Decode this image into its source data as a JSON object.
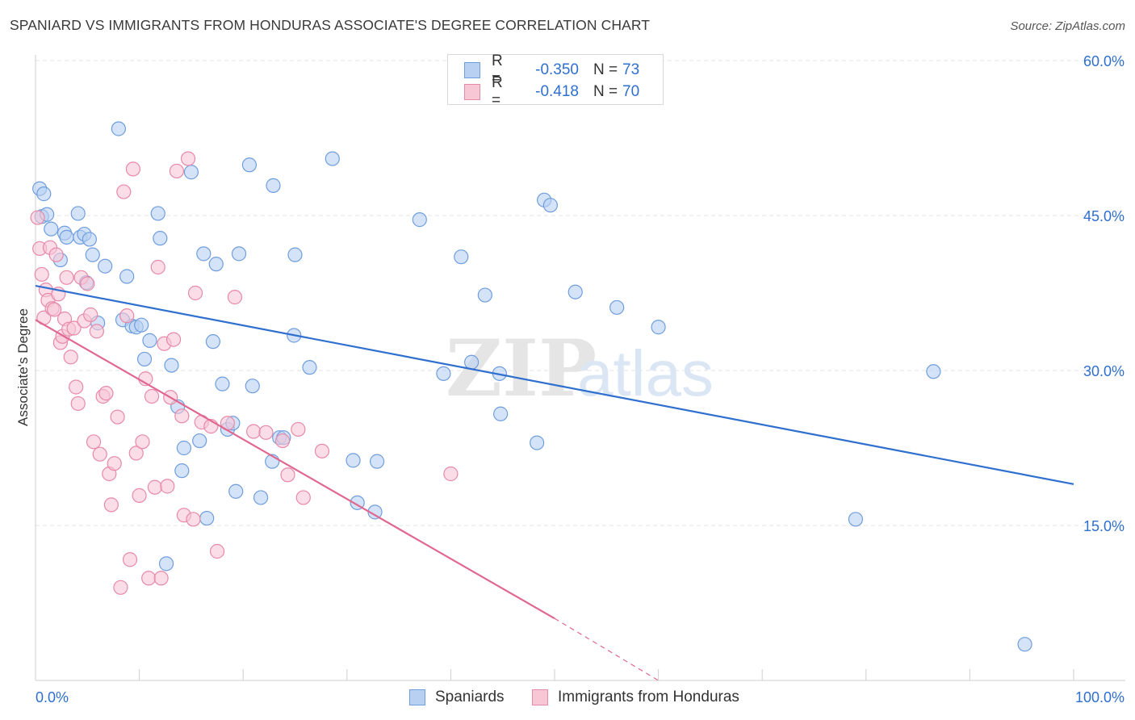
{
  "title": "SPANIARD VS IMMIGRANTS FROM HONDURAS ASSOCIATE'S DEGREE CORRELATION CHART",
  "source": "Source: ZipAtlas.com",
  "watermark": {
    "zip": "ZIP",
    "atlas": "atlas"
  },
  "legend_top": {
    "r_label": "R =",
    "n_label": "N =",
    "rows": [
      {
        "r": "-0.350",
        "n": "73"
      },
      {
        "r": "-0.418",
        "n": "70"
      }
    ]
  },
  "colors": {
    "blue_fill": "#b8d0f2",
    "blue_stroke": "#6f9ede",
    "blue_line": "#2e6fd0",
    "pink_fill": "#f7c7d6",
    "pink_stroke": "#e889a8",
    "pink_line": "#e0678f",
    "axis_text": "#2e6fd0",
    "grid": "#e3e3e3"
  },
  "chart_data": {
    "type": "scatter",
    "title": "SPANIARD VS IMMIGRANTS FROM HONDURAS ASSOCIATE'S DEGREE CORRELATION CHART",
    "xlabel": "",
    "ylabel": "Associate's Degree",
    "xlim": [
      0,
      100
    ],
    "ylim": [
      0,
      60
    ],
    "x_ticks": [
      0,
      100
    ],
    "x_tick_labels": [
      "0.0%",
      "100.0%"
    ],
    "y_ticks": [
      15,
      30,
      45,
      60
    ],
    "y_tick_labels": [
      "15.0%",
      "30.0%",
      "45.0%",
      "60.0%"
    ],
    "grid": true,
    "legend_position": "bottom",
    "series": [
      {
        "name": "Spaniards",
        "points": [
          [
            0.4,
            47.6
          ],
          [
            0.6,
            44.9
          ],
          [
            0.8,
            47.1
          ],
          [
            1.1,
            45.1
          ],
          [
            1.5,
            43.7
          ],
          [
            2.4,
            40.7
          ],
          [
            2.8,
            43.3
          ],
          [
            3.0,
            42.9
          ],
          [
            4.1,
            45.2
          ],
          [
            4.3,
            42.9
          ],
          [
            4.7,
            43.2
          ],
          [
            4.9,
            38.5
          ],
          [
            5.2,
            42.7
          ],
          [
            5.5,
            41.2
          ],
          [
            6.0,
            34.6
          ],
          [
            6.7,
            40.1
          ],
          [
            8.0,
            53.4
          ],
          [
            8.4,
            34.9
          ],
          [
            8.8,
            39.1
          ],
          [
            9.3,
            34.3
          ],
          [
            9.7,
            34.2
          ],
          [
            10.2,
            34.4
          ],
          [
            10.5,
            31.1
          ],
          [
            11.0,
            32.9
          ],
          [
            11.8,
            45.2
          ],
          [
            12.0,
            42.8
          ],
          [
            12.6,
            11.3
          ],
          [
            13.1,
            30.5
          ],
          [
            13.7,
            26.5
          ],
          [
            14.1,
            20.3
          ],
          [
            14.3,
            22.5
          ],
          [
            15.0,
            49.2
          ],
          [
            15.8,
            23.2
          ],
          [
            16.2,
            41.3
          ],
          [
            16.5,
            15.7
          ],
          [
            17.1,
            32.8
          ],
          [
            17.4,
            40.3
          ],
          [
            18.0,
            28.7
          ],
          [
            18.5,
            24.3
          ],
          [
            19.0,
            24.9
          ],
          [
            19.3,
            18.3
          ],
          [
            19.6,
            41.3
          ],
          [
            20.6,
            49.9
          ],
          [
            20.9,
            28.5
          ],
          [
            21.7,
            17.7
          ],
          [
            22.8,
            21.2
          ],
          [
            22.9,
            47.9
          ],
          [
            23.5,
            23.5
          ],
          [
            23.9,
            23.5
          ],
          [
            25.0,
            41.2
          ],
          [
            24.9,
            33.4
          ],
          [
            26.4,
            30.3
          ],
          [
            28.6,
            50.5
          ],
          [
            30.6,
            21.3
          ],
          [
            31.0,
            17.2
          ],
          [
            32.7,
            16.3
          ],
          [
            32.9,
            21.2
          ],
          [
            37.0,
            44.6
          ],
          [
            39.3,
            29.7
          ],
          [
            41.0,
            41.0
          ],
          [
            42.0,
            30.8
          ],
          [
            43.3,
            37.3
          ],
          [
            44.7,
            29.7
          ],
          [
            44.8,
            25.8
          ],
          [
            48.3,
            23.0
          ],
          [
            49.0,
            46.5
          ],
          [
            49.6,
            46.0
          ],
          [
            52.0,
            37.6
          ],
          [
            56.0,
            36.1
          ],
          [
            60.0,
            34.2
          ],
          [
            79.0,
            15.6
          ],
          [
            86.5,
            29.9
          ],
          [
            95.3,
            3.5
          ]
        ]
      },
      {
        "name": "Immigrants from Honduras",
        "points": [
          [
            0.2,
            44.8
          ],
          [
            0.4,
            41.8
          ],
          [
            0.6,
            39.3
          ],
          [
            0.8,
            35.1
          ],
          [
            1.0,
            37.8
          ],
          [
            1.2,
            36.8
          ],
          [
            1.4,
            41.9
          ],
          [
            1.6,
            36.0
          ],
          [
            1.8,
            35.9
          ],
          [
            2.0,
            41.2
          ],
          [
            2.2,
            37.4
          ],
          [
            2.4,
            32.7
          ],
          [
            2.6,
            33.3
          ],
          [
            2.8,
            35.0
          ],
          [
            3.0,
            39.0
          ],
          [
            3.2,
            34.0
          ],
          [
            3.4,
            31.3
          ],
          [
            3.7,
            34.1
          ],
          [
            3.9,
            28.4
          ],
          [
            4.1,
            26.8
          ],
          [
            4.4,
            39.0
          ],
          [
            4.7,
            34.8
          ],
          [
            5.0,
            38.4
          ],
          [
            5.3,
            35.4
          ],
          [
            5.6,
            23.1
          ],
          [
            5.9,
            33.8
          ],
          [
            6.2,
            21.9
          ],
          [
            6.5,
            27.5
          ],
          [
            6.8,
            27.8
          ],
          [
            7.1,
            20.0
          ],
          [
            7.3,
            17.0
          ],
          [
            7.6,
            21.0
          ],
          [
            7.9,
            25.5
          ],
          [
            8.2,
            9.0
          ],
          [
            8.5,
            47.3
          ],
          [
            8.8,
            35.3
          ],
          [
            9.1,
            11.7
          ],
          [
            9.4,
            49.5
          ],
          [
            9.7,
            22.0
          ],
          [
            10.0,
            17.9
          ],
          [
            10.3,
            23.1
          ],
          [
            10.6,
            29.2
          ],
          [
            10.9,
            9.9
          ],
          [
            11.2,
            27.5
          ],
          [
            11.5,
            18.7
          ],
          [
            11.8,
            40.0
          ],
          [
            12.1,
            9.9
          ],
          [
            12.4,
            32.6
          ],
          [
            12.7,
            18.8
          ],
          [
            13.0,
            27.4
          ],
          [
            13.3,
            33.0
          ],
          [
            13.6,
            49.3
          ],
          [
            14.1,
            25.6
          ],
          [
            14.3,
            16.0
          ],
          [
            14.7,
            50.5
          ],
          [
            15.2,
            15.6
          ],
          [
            15.4,
            37.5
          ],
          [
            16.0,
            25.0
          ],
          [
            16.9,
            24.6
          ],
          [
            17.5,
            12.5
          ],
          [
            18.5,
            24.9
          ],
          [
            19.2,
            37.1
          ],
          [
            21.0,
            24.1
          ],
          [
            22.2,
            24.0
          ],
          [
            23.8,
            23.2
          ],
          [
            24.3,
            19.9
          ],
          [
            25.3,
            24.3
          ],
          [
            25.8,
            17.7
          ],
          [
            27.6,
            22.2
          ],
          [
            40.0,
            20.0
          ]
        ]
      }
    ],
    "trendlines": [
      {
        "series": "Spaniards",
        "x": [
          0,
          100
        ],
        "y": [
          38.2,
          19.0
        ]
      },
      {
        "series": "Immigrants from Honduras",
        "x": [
          0,
          50
        ],
        "y": [
          34.9,
          6.0
        ],
        "dashed_extension_x": [
          50,
          60
        ],
        "dashed_extension_y": [
          6.0,
          0.0
        ]
      }
    ]
  },
  "legend_bottom": [
    {
      "label": "Spaniards"
    },
    {
      "label": "Immigrants from Honduras"
    }
  ]
}
